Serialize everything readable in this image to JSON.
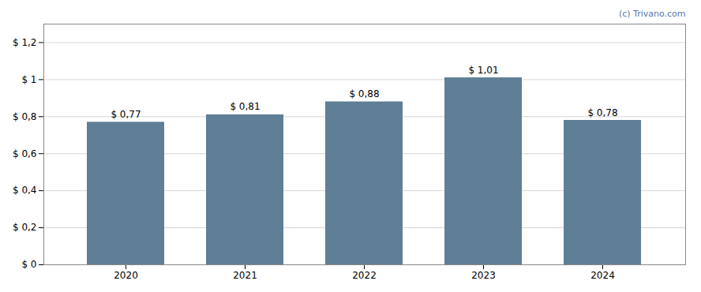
{
  "chart_data": {
    "type": "bar",
    "categories": [
      2020,
      2021,
      2022,
      2023,
      2024
    ],
    "values": [
      0.77,
      0.81,
      0.88,
      1.01,
      0.78
    ],
    "value_labels": [
      "$ 0,77",
      "$ 0,81",
      "$ 0,88",
      "$ 1,01",
      "$ 0,78"
    ],
    "data_labels": true,
    "color": "#5f7f96",
    "ylim": [
      0,
      1.3
    ],
    "yticks": [
      {
        "value": 0,
        "label": "$ 0"
      },
      {
        "value": 0.2,
        "label": "$ 0,2"
      },
      {
        "value": 0.4,
        "label": "$ 0,4"
      },
      {
        "value": 0.6,
        "label": "$ 0,6"
      },
      {
        "value": 0.8,
        "label": "$ 0,8"
      },
      {
        "value": 1.0,
        "label": "$ 1"
      },
      {
        "value": 1.2,
        "label": "$ 1,2"
      }
    ],
    "grid": true,
    "annotations": [
      {
        "text": "(c) Trivano.com",
        "color": "#5577aa"
      }
    ]
  }
}
